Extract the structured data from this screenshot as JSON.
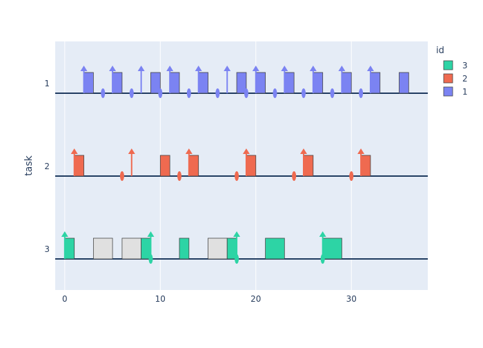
{
  "chart_data": {
    "type": "scheduling-timeline",
    "title": "",
    "xlabel": "",
    "ylabel": "task",
    "xlim": [
      -1,
      38
    ],
    "x_ticks": [
      0,
      10,
      20,
      30
    ],
    "y_categories": [
      "1",
      "2",
      "3"
    ],
    "grid": true,
    "legend": {
      "title": "id",
      "position": "top-right",
      "items": [
        {
          "label": "3",
          "color": "#2dd4a5"
        },
        {
          "label": "2",
          "color": "#ef6a50"
        },
        {
          "label": "1",
          "color": "#7b83f2"
        }
      ]
    },
    "preempted_color": "#e0e0e0",
    "series": [
      {
        "name": "1",
        "task": "1",
        "color": "#7b83f2",
        "executions": [
          [
            2,
            3
          ],
          [
            5,
            6
          ],
          [
            9,
            10
          ],
          [
            11,
            12
          ],
          [
            14,
            15
          ],
          [
            18,
            19
          ],
          [
            20,
            21
          ],
          [
            23,
            24
          ],
          [
            26,
            27
          ],
          [
            29,
            30
          ],
          [
            32,
            33
          ],
          [
            35,
            36
          ]
        ],
        "releases": [
          2,
          5,
          8,
          11,
          14,
          17,
          20,
          23,
          26,
          29,
          32
        ],
        "deadlines": [
          4,
          7,
          10,
          13,
          16,
          19,
          22,
          25,
          28,
          31
        ]
      },
      {
        "name": "2",
        "task": "2",
        "color": "#ef6a50",
        "executions": [
          [
            1,
            2
          ],
          [
            10,
            11
          ],
          [
            13,
            14
          ],
          [
            19,
            20
          ],
          [
            25,
            26
          ],
          [
            31,
            32
          ]
        ],
        "releases": [
          1,
          7,
          13,
          19,
          25,
          31
        ],
        "deadlines": [
          6,
          12,
          18,
          24,
          30
        ]
      },
      {
        "name": "3",
        "task": "3",
        "color": "#2dd4a5",
        "executions": [
          [
            0,
            1
          ],
          [
            8,
            9
          ],
          [
            12,
            13
          ],
          [
            17,
            18
          ],
          [
            21,
            23
          ],
          [
            27,
            29
          ]
        ],
        "preempted": [
          [
            3,
            5
          ],
          [
            6,
            8
          ],
          [
            15,
            17
          ]
        ],
        "releases": [
          0,
          9,
          18,
          27
        ],
        "deadlines": [
          9,
          18,
          27
        ]
      }
    ]
  }
}
